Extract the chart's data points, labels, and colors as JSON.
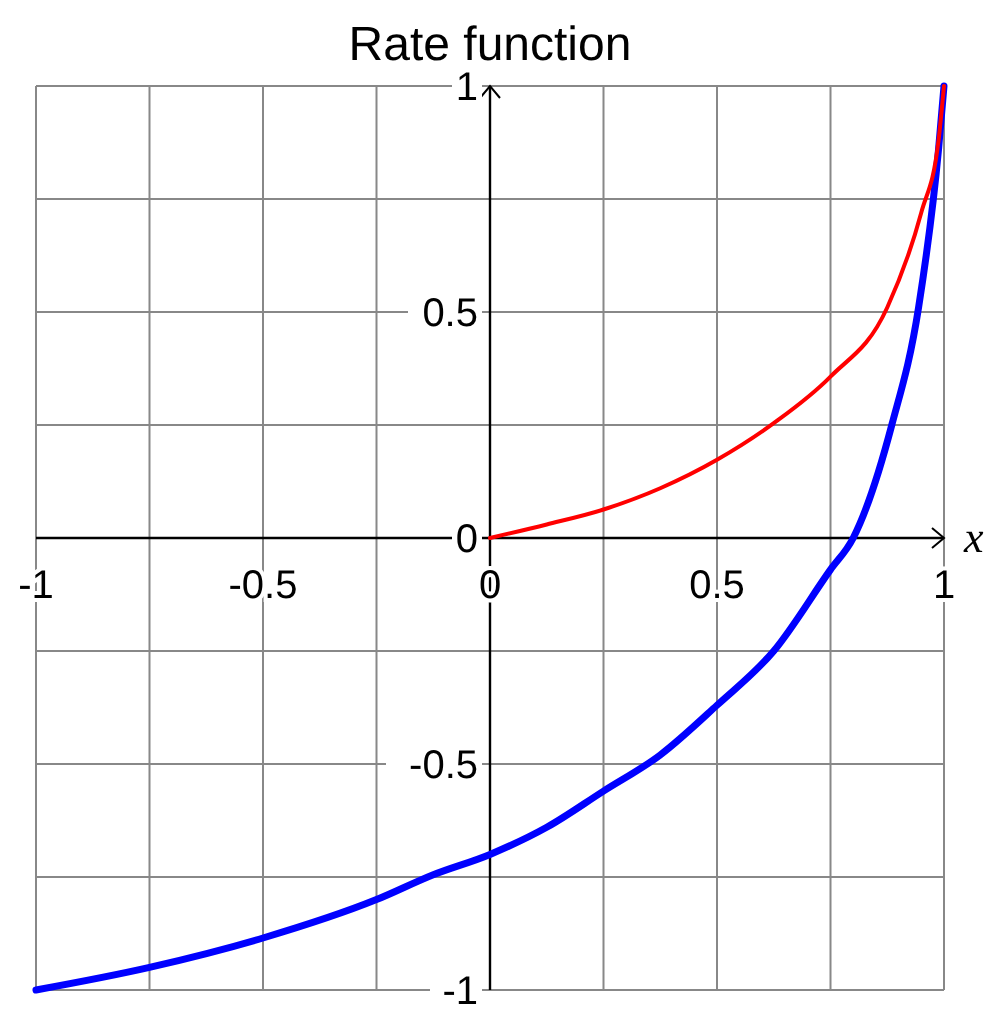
{
  "chart_data": {
    "type": "line",
    "title": "Rate function",
    "xlabel": "x",
    "xlim": [
      -1,
      1
    ],
    "ylim": [
      -1,
      1
    ],
    "xticks": [
      -1,
      {
        "value": -0.75,
        "label": null
      },
      -0.5,
      {
        "value": -0.25,
        "label": null
      },
      0,
      {
        "value": 0.25,
        "label": null
      },
      0.5,
      {
        "value": 0.75,
        "label": null
      },
      1
    ],
    "yticks": [
      -1,
      {
        "value": -0.75,
        "label": null
      },
      -0.5,
      {
        "value": -0.25,
        "label": null
      },
      0,
      {
        "value": 0.25,
        "label": null
      },
      0.5,
      {
        "value": 0.75,
        "label": null
      },
      1
    ],
    "grid": true,
    "line_style": "solid",
    "marker": "none",
    "series": [
      {
        "color": "#ff0000",
        "x": [
          0,
          0.125,
          0.25,
          0.375,
          0.5,
          0.625,
          0.75,
          0.875,
          0.95,
          0.988,
          1
        ],
        "values": [
          0,
          0.03,
          0.063,
          0.11,
          0.173,
          0.254,
          0.357,
          0.51,
          0.72,
          0.88,
          1
        ]
      },
      {
        "color": "#0000ff",
        "x": [
          -1,
          -0.75,
          -0.5,
          -0.25,
          -0.125,
          0,
          0.125,
          0.25,
          0.375,
          0.5,
          0.625,
          0.75,
          0.8,
          0.885,
          0.944,
          0.988,
          1
        ],
        "values": [
          -1,
          -0.95,
          -0.885,
          -0.8,
          -0.745,
          -0.7,
          -0.64,
          -0.56,
          -0.48,
          -0.37,
          -0.25,
          -0.07,
          0,
          0.25,
          0.51,
          0.86,
          1
        ]
      }
    ]
  }
}
